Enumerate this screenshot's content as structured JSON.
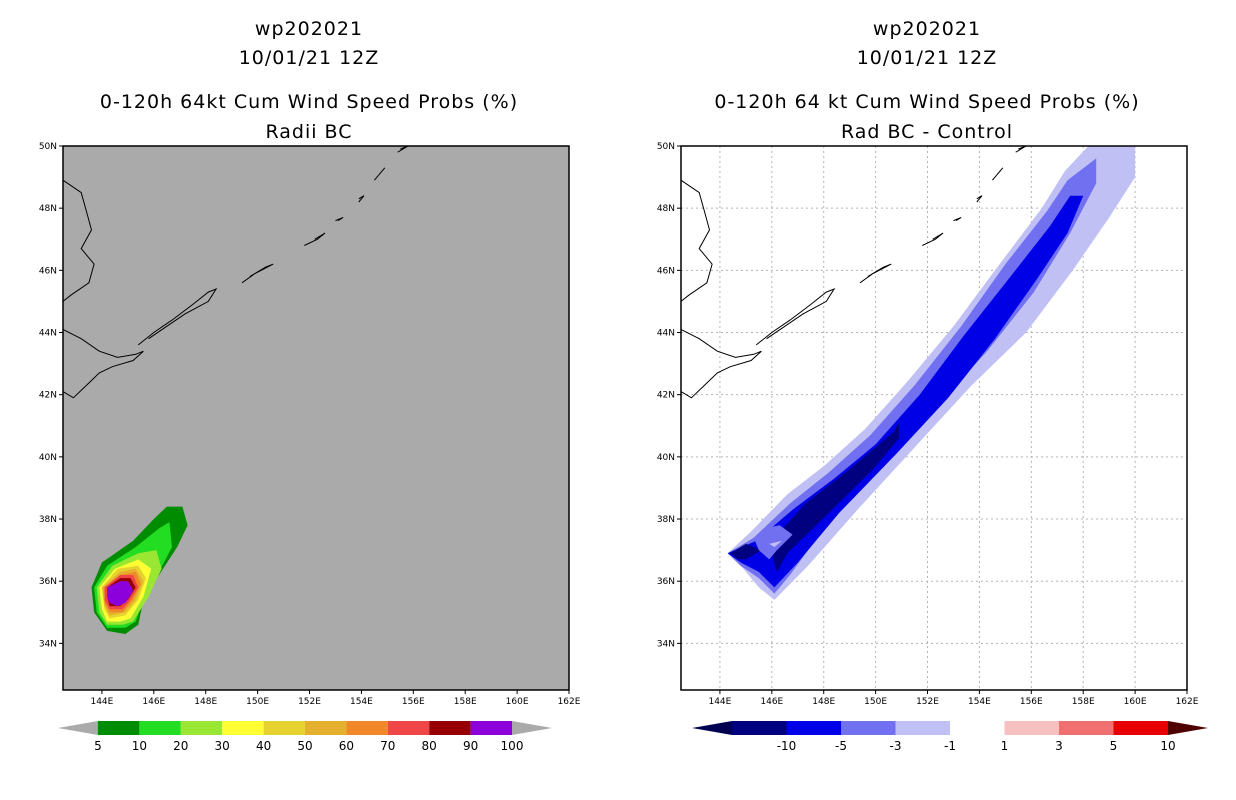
{
  "chart_data": [
    {
      "type": "heatmap",
      "panel": "left",
      "title_lines": [
        "wp202021",
        "10/01/21 12Z",
        "0-120h 64kt Cum Wind Speed Probs (%)",
        "Radii BC"
      ],
      "xlabel": "",
      "ylabel": "",
      "xlim": [
        142.5,
        162
      ],
      "ylim": [
        32.5,
        50
      ],
      "x_ticks": [
        144,
        146,
        148,
        150,
        152,
        154,
        156,
        158,
        160,
        162
      ],
      "x_tick_labels": [
        "144E",
        "146E",
        "148E",
        "150E",
        "152E",
        "154E",
        "156E",
        "158E",
        "160E",
        "162E"
      ],
      "y_ticks": [
        34,
        36,
        38,
        40,
        42,
        44,
        46,
        48,
        50
      ],
      "y_tick_labels": [
        "34N",
        "36N",
        "38N",
        "40N",
        "42N",
        "44N",
        "46N",
        "48N",
        "50N"
      ],
      "grid": false,
      "background": "#aaaaaa",
      "colorbar": {
        "labels": [
          "5",
          "10",
          "20",
          "30",
          "40",
          "50",
          "60",
          "70",
          "80",
          "90",
          "100"
        ],
        "colors": [
          "#008c00",
          "#22dd22",
          "#99e633",
          "#ffff33",
          "#e6d32f",
          "#e6b02f",
          "#f08728",
          "#f04646",
          "#960000",
          "#8c00dc"
        ],
        "end_color": "#aaaaaa"
      },
      "contours": [
        {
          "level": 5,
          "color": "#008c00",
          "points": [
            [
              143.6,
              35.8
            ],
            [
              144.0,
              36.6
            ],
            [
              145.2,
              37.3
            ],
            [
              146.0,
              38.0
            ],
            [
              146.5,
              38.4
            ],
            [
              147.1,
              38.4
            ],
            [
              147.3,
              37.8
            ],
            [
              146.9,
              37.1
            ],
            [
              146.2,
              36.2
            ],
            [
              145.6,
              35.4
            ],
            [
              145.4,
              34.6
            ],
            [
              144.9,
              34.3
            ],
            [
              144.2,
              34.4
            ],
            [
              143.7,
              35.0
            ]
          ]
        },
        {
          "level": 10,
          "color": "#22dd22",
          "points": [
            [
              143.7,
              35.8
            ],
            [
              144.2,
              36.5
            ],
            [
              145.3,
              37.1
            ],
            [
              146.2,
              37.7
            ],
            [
              146.6,
              37.9
            ],
            [
              146.7,
              37.1
            ],
            [
              146.2,
              36.3
            ],
            [
              145.6,
              35.4
            ],
            [
              145.3,
              34.7
            ],
            [
              144.9,
              34.5
            ],
            [
              144.2,
              34.5
            ],
            [
              143.8,
              35.0
            ]
          ]
        },
        {
          "level": 20,
          "color": "#99e633",
          "points": [
            [
              143.8,
              35.8
            ],
            [
              144.4,
              36.5
            ],
            [
              145.4,
              36.9
            ],
            [
              146.1,
              37.0
            ],
            [
              146.3,
              36.4
            ],
            [
              145.8,
              35.5
            ],
            [
              145.2,
              34.7
            ],
            [
              144.8,
              34.6
            ],
            [
              144.2,
              34.6
            ],
            [
              143.9,
              35.0
            ]
          ]
        },
        {
          "level": 30,
          "color": "#ffff33",
          "points": [
            [
              143.9,
              35.8
            ],
            [
              144.5,
              36.4
            ],
            [
              145.4,
              36.7
            ],
            [
              145.9,
              36.4
            ],
            [
              145.6,
              35.5
            ],
            [
              145.1,
              34.8
            ],
            [
              144.7,
              34.7
            ],
            [
              144.2,
              34.7
            ],
            [
              144.0,
              35.1
            ]
          ]
        },
        {
          "level": 40,
          "color": "#e6d32f",
          "points": [
            [
              144.0,
              35.8
            ],
            [
              144.6,
              36.4
            ],
            [
              145.4,
              36.5
            ],
            [
              145.7,
              36.1
            ],
            [
              145.4,
              35.4
            ],
            [
              144.9,
              34.9
            ],
            [
              144.3,
              34.8
            ],
            [
              144.1,
              35.1
            ]
          ]
        },
        {
          "level": 50,
          "color": "#e6b02f",
          "points": [
            [
              144.0,
              35.8
            ],
            [
              144.7,
              36.3
            ],
            [
              145.3,
              36.4
            ],
            [
              145.6,
              36.0
            ],
            [
              145.3,
              35.4
            ],
            [
              144.9,
              35.0
            ],
            [
              144.3,
              34.9
            ],
            [
              144.1,
              35.2
            ]
          ]
        },
        {
          "level": 60,
          "color": "#f08728",
          "points": [
            [
              144.1,
              35.8
            ],
            [
              144.7,
              36.2
            ],
            [
              145.3,
              36.3
            ],
            [
              145.5,
              35.9
            ],
            [
              145.2,
              35.4
            ],
            [
              144.8,
              35.0
            ],
            [
              144.3,
              35.0
            ],
            [
              144.1,
              35.3
            ]
          ]
        },
        {
          "level": 70,
          "color": "#f04646",
          "points": [
            [
              144.1,
              35.8
            ],
            [
              144.7,
              36.2
            ],
            [
              145.2,
              36.2
            ],
            [
              145.4,
              35.8
            ],
            [
              145.1,
              35.4
            ],
            [
              144.8,
              35.1
            ],
            [
              144.3,
              35.1
            ],
            [
              144.1,
              35.4
            ]
          ]
        },
        {
          "level": 80,
          "color": "#960000",
          "points": [
            [
              144.2,
              35.8
            ],
            [
              144.7,
              36.1
            ],
            [
              145.1,
              36.1
            ],
            [
              145.3,
              35.8
            ],
            [
              145.0,
              35.4
            ],
            [
              144.7,
              35.2
            ],
            [
              144.3,
              35.2
            ],
            [
              144.2,
              35.5
            ]
          ]
        },
        {
          "level": 90,
          "color": "#8c00dc",
          "points": [
            [
              144.2,
              35.8
            ],
            [
              144.7,
              36.0
            ],
            [
              145.0,
              36.0
            ],
            [
              145.2,
              35.7
            ],
            [
              144.9,
              35.3
            ],
            [
              144.6,
              35.2
            ],
            [
              144.3,
              35.3
            ],
            [
              144.2,
              35.5
            ]
          ]
        },
        {
          "level": 100,
          "color": "#8c00dc",
          "points": [
            [
              144.3,
              35.7
            ],
            [
              144.7,
              35.9
            ],
            [
              145.0,
              35.9
            ],
            [
              145.1,
              35.6
            ],
            [
              144.8,
              35.3
            ],
            [
              144.5,
              35.3
            ],
            [
              144.3,
              35.4
            ]
          ]
        }
      ]
    },
    {
      "type": "heatmap",
      "panel": "right",
      "title_lines": [
        "wp202021",
        "10/01/21 12Z",
        "0-120h 64 kt Cum Wind Speed Probs (%)",
        "Rad BC - Control"
      ],
      "xlabel": "",
      "ylabel": "",
      "xlim": [
        142.5,
        162
      ],
      "ylim": [
        32.5,
        50
      ],
      "x_ticks": [
        144,
        146,
        148,
        150,
        152,
        154,
        156,
        158,
        160,
        162
      ],
      "x_tick_labels": [
        "144E",
        "146E",
        "148E",
        "150E",
        "152E",
        "154E",
        "156E",
        "158E",
        "160E",
        "162E"
      ],
      "y_ticks": [
        34,
        36,
        38,
        40,
        42,
        44,
        46,
        48,
        50
      ],
      "y_tick_labels": [
        "34N",
        "36N",
        "38N",
        "40N",
        "42N",
        "44N",
        "46N",
        "48N",
        "50N"
      ],
      "grid": true,
      "background": "#ffffff",
      "colorbar": {
        "labels": [
          "-10",
          "-5",
          "-3",
          "-1",
          "1",
          "3",
          "5",
          "10"
        ],
        "colors": [
          "#000080",
          "#0000e6",
          "#7070f0",
          "#c0c0f5",
          "#ffffff",
          "#f5c0c0",
          "#f07070",
          "#e60000"
        ],
        "start_color": "#000050",
        "end_color": "#500000"
      },
      "contours": [
        {
          "level": -1,
          "color": "#c0c0f5",
          "points": [
            [
              144.3,
              36.9
            ],
            [
              145.2,
              37.6
            ],
            [
              146.6,
              38.8
            ],
            [
              148.0,
              39.7
            ],
            [
              149.6,
              40.9
            ],
            [
              151.2,
              42.4
            ],
            [
              153.0,
              44.2
            ],
            [
              154.6,
              46.0
            ],
            [
              156.4,
              48.0
            ],
            [
              157.3,
              49.2
            ],
            [
              158.2,
              50.0
            ],
            [
              160.0,
              50.0
            ],
            [
              160.0,
              49.0
            ],
            [
              159.0,
              47.7
            ],
            [
              157.6,
              46.0
            ],
            [
              155.8,
              44.0
            ],
            [
              153.7,
              42.3
            ],
            [
              151.5,
              40.3
            ],
            [
              149.3,
              38.3
            ],
            [
              147.4,
              36.5
            ],
            [
              146.1,
              35.4
            ],
            [
              145.5,
              35.8
            ],
            [
              144.9,
              36.4
            ]
          ]
        },
        {
          "level": -3,
          "color": "#7070f0",
          "points": [
            [
              144.3,
              36.9
            ],
            [
              145.3,
              37.4
            ],
            [
              146.7,
              38.5
            ],
            [
              148.2,
              39.5
            ],
            [
              149.8,
              40.7
            ],
            [
              151.5,
              42.3
            ],
            [
              153.3,
              44.2
            ],
            [
              155.0,
              46.2
            ],
            [
              156.6,
              47.9
            ],
            [
              157.4,
              48.9
            ],
            [
              158.5,
              49.6
            ],
            [
              158.5,
              48.8
            ],
            [
              157.5,
              47.2
            ],
            [
              156.1,
              45.3
            ],
            [
              154.3,
              43.4
            ],
            [
              152.2,
              41.5
            ],
            [
              150.1,
              39.6
            ],
            [
              148.1,
              37.8
            ],
            [
              146.7,
              36.2
            ],
            [
              146.1,
              35.6
            ],
            [
              145.5,
              36.1
            ],
            [
              144.8,
              36.5
            ]
          ]
        },
        {
          "level": -5,
          "color": "#0000e6",
          "points": [
            [
              144.3,
              36.9
            ],
            [
              145.4,
              37.3
            ],
            [
              146.8,
              38.3
            ],
            [
              148.4,
              39.3
            ],
            [
              150.0,
              40.4
            ],
            [
              151.7,
              42.0
            ],
            [
              153.4,
              43.9
            ],
            [
              155.1,
              45.7
            ],
            [
              156.7,
              47.4
            ],
            [
              157.5,
              48.4
            ],
            [
              158.0,
              48.4
            ],
            [
              157.4,
              47.2
            ],
            [
              156.2,
              45.7
            ],
            [
              154.6,
              43.8
            ],
            [
              152.8,
              41.9
            ],
            [
              150.8,
              40.1
            ],
            [
              148.6,
              38.2
            ],
            [
              147.0,
              36.6
            ],
            [
              146.1,
              35.8
            ],
            [
              145.5,
              36.3
            ],
            [
              144.8,
              36.6
            ]
          ]
        },
        {
          "level": -10,
          "color": "#000080",
          "points": [
            [
              144.4,
              36.9
            ],
            [
              145.0,
              37.2
            ],
            [
              145.6,
              37.0
            ],
            [
              145.0,
              36.7
            ],
            [
              144.7,
              36.7
            ]
          ]
        },
        {
          "level": -10,
          "color": "#000080",
          "points": [
            [
              146.1,
              37.4
            ],
            [
              147.3,
              38.5
            ],
            [
              149.0,
              39.6
            ],
            [
              150.7,
              40.8
            ],
            [
              150.9,
              41.1
            ],
            [
              150.9,
              40.6
            ],
            [
              149.9,
              39.6
            ],
            [
              148.2,
              38.2
            ],
            [
              146.6,
              36.9
            ],
            [
              146.2,
              36.3
            ],
            [
              146.0,
              36.9
            ]
          ]
        },
        {
          "level": -3,
          "color": "#7070f0",
          "points": [
            [
              145.3,
              37.4
            ],
            [
              145.7,
              37.7
            ],
            [
              146.3,
              37.8
            ],
            [
              146.8,
              37.5
            ],
            [
              146.2,
              37.0
            ],
            [
              145.9,
              36.7
            ],
            [
              145.5,
              37.0
            ]
          ]
        },
        {
          "level": -1,
          "color": "#c0c0f5",
          "points": [
            [
              145.9,
              37.2
            ],
            [
              146.4,
              37.3
            ],
            [
              146.1,
              37.1
            ]
          ]
        }
      ]
    }
  ]
}
